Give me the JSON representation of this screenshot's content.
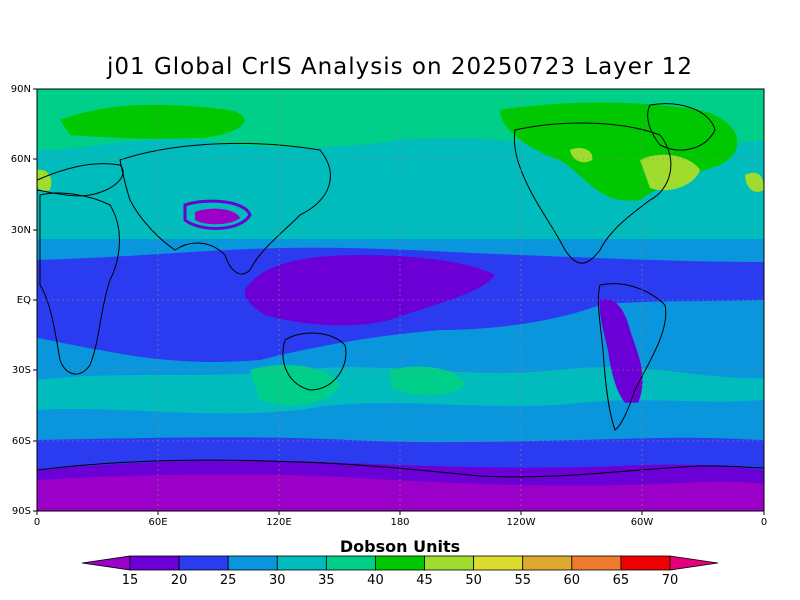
{
  "title": "j01 Global CrIS Analysis on 20250723 Layer 12",
  "map": {
    "lat_labels": [
      "90N",
      "60N",
      "30N",
      "EQ",
      "30S",
      "60S",
      "90S"
    ],
    "lon_labels": [
      "0",
      "60E",
      "120E",
      "180",
      "120W",
      "60W",
      "0"
    ]
  },
  "colorbar": {
    "title": "Dobson Units",
    "ticks": [
      "15",
      "20",
      "25",
      "30",
      "35",
      "40",
      "45",
      "50",
      "55",
      "60",
      "65",
      "70"
    ],
    "colors": [
      "#9b00c8",
      "#6a00d6",
      "#2b3cf0",
      "#0a96dc",
      "#00bcbc",
      "#00cf8a",
      "#00c800",
      "#9fdc2e",
      "#dcdc2e",
      "#dcaa2e",
      "#ee7a2e",
      "#f00000",
      "#e4007a"
    ]
  },
  "palette": {
    "ocean_purple": "#9b00c8",
    "deep_purple": "#8a00d0",
    "blue": "#2b3cf0",
    "sky": "#0a96dc",
    "cyan": "#00bcbc",
    "teal": "#00cf8a",
    "green": "#00c800",
    "lime": "#9fdc2e",
    "coast": "#000000"
  }
}
